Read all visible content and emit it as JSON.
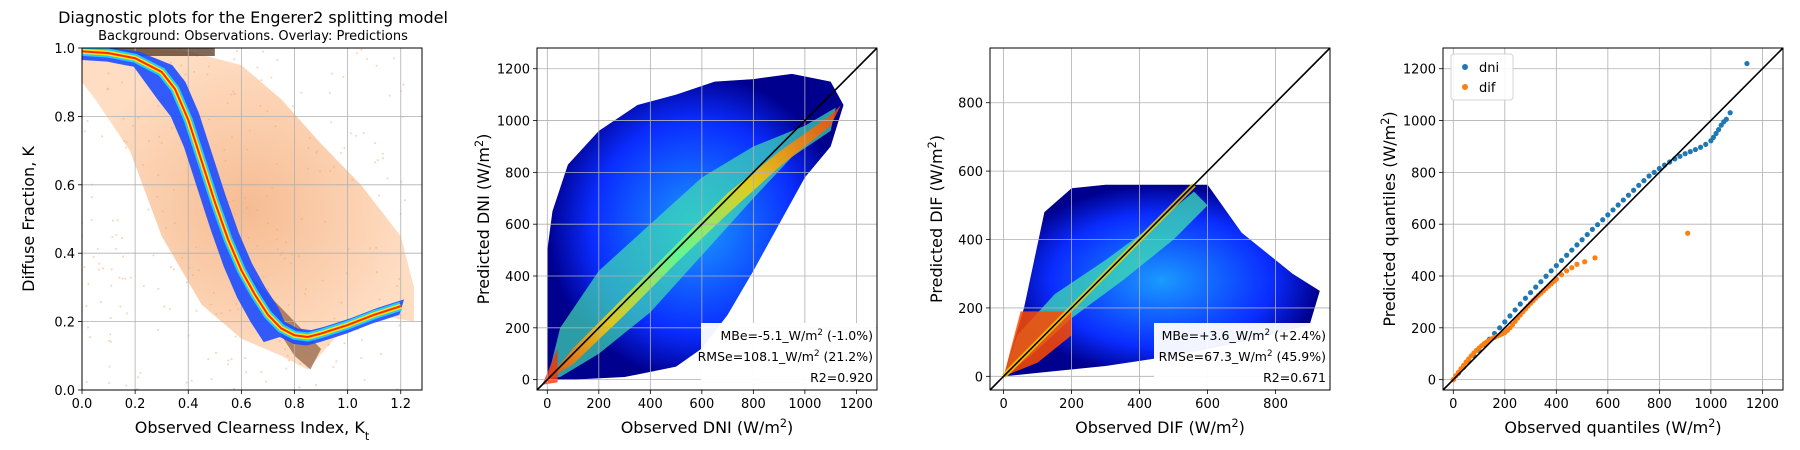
{
  "figure": {
    "panel1_title": "Diagnostic plots for the Engerer2 splitting model",
    "panel1_subtitle": "Background: Observations. Overlay: Predictions"
  },
  "chart_data": [
    {
      "type": "heatmap",
      "title": "Diagnostic plots for the Engerer2 splitting model",
      "subtitle": "Background: Observations. Overlay: Predictions",
      "xlabel": "Observed Clearness Index, K_t",
      "ylabel": "Diffuse Fraction, K",
      "xlim": [
        0.0,
        1.28
      ],
      "ylim": [
        0.0,
        1.0
      ],
      "xticks": [
        "0.0",
        "0.2",
        "0.4",
        "0.6",
        "0.8",
        "1.0",
        "1.2"
      ],
      "yticks": [
        "0.0",
        "0.2",
        "0.4",
        "0.6",
        "0.8",
        "1.0"
      ],
      "grid": true,
      "prediction_curve_kt": [
        0.0,
        0.1,
        0.2,
        0.3,
        0.35,
        0.4,
        0.45,
        0.5,
        0.55,
        0.6,
        0.65,
        0.7,
        0.75,
        0.8,
        0.85,
        0.9,
        1.0,
        1.1,
        1.2
      ],
      "prediction_curve_k": [
        0.99,
        0.985,
        0.97,
        0.93,
        0.88,
        0.79,
        0.67,
        0.55,
        0.44,
        0.35,
        0.28,
        0.22,
        0.18,
        0.16,
        0.155,
        0.165,
        0.19,
        0.22,
        0.245
      ]
    },
    {
      "type": "heatmap",
      "xlabel": "Observed DNI (W/m²)",
      "ylabel": "Predicted DNI (W/m²)",
      "xlim": [
        -40,
        1280
      ],
      "ylim": [
        -40,
        1280
      ],
      "xticks": [
        "0",
        "200",
        "400",
        "600",
        "800",
        "1000",
        "1200"
      ],
      "yticks": [
        "0",
        "200",
        "400",
        "600",
        "800",
        "1000",
        "1200"
      ],
      "grid": true,
      "identity_line": true,
      "annotations": [
        "MBe=-5.1_W/m² (-1.0%)",
        "RMSe=108.1_W/m² (21.2%)",
        "R2=0.920"
      ]
    },
    {
      "type": "heatmap",
      "xlabel": "Observed DIF (W/m²)",
      "ylabel": "Predicted DIF (W/m²)",
      "xlim": [
        -40,
        960
      ],
      "ylim": [
        -40,
        960
      ],
      "xticks": [
        "0",
        "200",
        "400",
        "600",
        "800"
      ],
      "yticks": [
        "0",
        "200",
        "400",
        "600",
        "800"
      ],
      "grid": true,
      "identity_line": true,
      "annotations": [
        "MBe=+3.6_W/m² (+2.4%)",
        "RMSe=67.3_W/m² (45.9%)",
        "R2=0.671"
      ]
    },
    {
      "type": "scatter",
      "xlabel": "Observed quantiles (W/m²)",
      "ylabel": "Predicted quantiles (W/m²)",
      "xlim": [
        -40,
        1280
      ],
      "ylim": [
        -40,
        1280
      ],
      "xticks": [
        "0",
        "200",
        "400",
        "600",
        "800",
        "1000",
        "1200"
      ],
      "yticks": [
        "0",
        "200",
        "400",
        "600",
        "800",
        "1000",
        "1200"
      ],
      "grid": true,
      "identity_line": true,
      "legend": "top-left",
      "series": [
        {
          "name": "dni",
          "color": "#1f77b4",
          "x": [
            0,
            20,
            40,
            60,
            80,
            100,
            120,
            140,
            160,
            180,
            200,
            220,
            240,
            260,
            280,
            300,
            320,
            340,
            360,
            380,
            400,
            420,
            440,
            460,
            480,
            500,
            520,
            540,
            560,
            580,
            600,
            620,
            640,
            660,
            680,
            700,
            720,
            740,
            760,
            780,
            800,
            820,
            840,
            860,
            880,
            900,
            920,
            940,
            960,
            980,
            1000,
            1010,
            1020,
            1030,
            1040,
            1050,
            1060,
            1075,
            1140
          ],
          "y": [
            0,
            25,
            48,
            70,
            92,
            113,
            135,
            156,
            178,
            200,
            223,
            246,
            269,
            292,
            314,
            336,
            357,
            378,
            399,
            420,
            440,
            460,
            480,
            500,
            520,
            540,
            560,
            580,
            598,
            617,
            636,
            655,
            674,
            693,
            712,
            731,
            750,
            768,
            786,
            800,
            815,
            828,
            840,
            852,
            862,
            872,
            880,
            888,
            897,
            908,
            922,
            935,
            950,
            965,
            982,
            995,
            1005,
            1030,
            1220
          ]
        },
        {
          "name": "dif",
          "color": "#ff7f0e",
          "x": [
            0,
            10,
            20,
            30,
            40,
            50,
            60,
            70,
            80,
            90,
            100,
            110,
            120,
            130,
            140,
            150,
            160,
            170,
            180,
            190,
            200,
            210,
            220,
            230,
            240,
            250,
            260,
            270,
            280,
            290,
            300,
            310,
            320,
            330,
            340,
            350,
            360,
            370,
            380,
            390,
            400,
            420,
            440,
            460,
            480,
            510,
            550,
            910
          ],
          "y": [
            0,
            15,
            28,
            42,
            55,
            68,
            80,
            92,
            103,
            113,
            122,
            131,
            139,
            146,
            152,
            158,
            163,
            168,
            172,
            177,
            182,
            190,
            200,
            212,
            225,
            238,
            250,
            262,
            273,
            284,
            295,
            305,
            315,
            325,
            334,
            343,
            352,
            361,
            370,
            379,
            388,
            405,
            420,
            432,
            445,
            455,
            470,
            565
          ]
        }
      ]
    }
  ]
}
